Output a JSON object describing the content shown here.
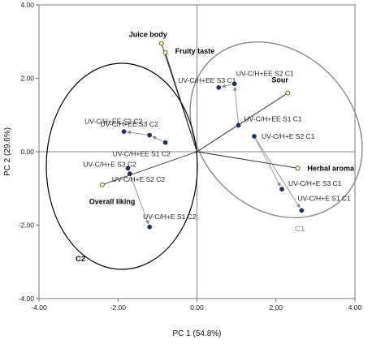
{
  "chart_data": {
    "type": "scatter",
    "title": "",
    "xlabel": "PC 1 (54.8%)",
    "ylabel": "PC 2 (29.6%)",
    "xlim": [
      -4,
      4
    ],
    "ylim": [
      -4,
      4
    ],
    "x_ticks": [
      "-4.00",
      "-2.00",
      "0.00",
      "2.00",
      "4.00"
    ],
    "y_ticks": [
      "4.00",
      "2.00",
      "0.00",
      "-2.00",
      "-4.00"
    ],
    "samples": [
      {
        "label": "UV-C/H+EE S3 C1",
        "x": 0.55,
        "y": 1.75
      },
      {
        "label": "UV-C/H+EE S2 C1",
        "x": 0.95,
        "y": 1.85
      },
      {
        "label": "UV-C/H+EE S1 C1",
        "x": 1.05,
        "y": 0.72
      },
      {
        "label": "UV-C/H+E S2 C1",
        "x": 1.45,
        "y": 0.42
      },
      {
        "label": "UV-C/H+E S3 C1",
        "x": 2.15,
        "y": -1.02
      },
      {
        "label": "UV-C/H+E S1 C1",
        "x": 2.65,
        "y": -1.6
      },
      {
        "label": "UV-C/H+EE S3 C2",
        "x": -1.85,
        "y": 0.55
      },
      {
        "label": "UV-C/H+EE S2 C2",
        "x": -1.2,
        "y": 0.45
      },
      {
        "label": "UV-C/H+EE S1 C2",
        "x": -0.8,
        "y": 0.25
      },
      {
        "label": "UV-C/H+E S3 C2",
        "x": -1.75,
        "y": -0.45
      },
      {
        "label": "UV-C/H+E S2 C2",
        "x": -1.7,
        "y": -0.6
      },
      {
        "label": "UV-C/H+E S1 C2",
        "x": -1.2,
        "y": -2.05
      }
    ],
    "attributes": [
      {
        "label": "Juice body",
        "x": -0.9,
        "y": 2.95
      },
      {
        "label": "Fruity taste",
        "x": -0.8,
        "y": 2.7
      },
      {
        "label": "Sour",
        "x": 2.3,
        "y": 1.6
      },
      {
        "label": "Herbal aroma",
        "x": 2.55,
        "y": -0.45
      },
      {
        "label": "Overall liking",
        "x": -2.4,
        "y": -0.9
      }
    ],
    "arrows": [
      {
        "from": 1,
        "to": 0
      },
      {
        "from": 2,
        "to": 1
      },
      {
        "from": 3,
        "to": 4
      },
      {
        "from": 3,
        "to": 5
      },
      {
        "from": 8,
        "to": 7
      },
      {
        "from": 7,
        "to": 6
      },
      {
        "from": 9,
        "to": 10
      },
      {
        "from": 10,
        "to": 11
      }
    ],
    "groups": [
      {
        "label": "C1",
        "color": "#888888"
      },
      {
        "label": "C2",
        "color": "#000000"
      }
    ]
  }
}
